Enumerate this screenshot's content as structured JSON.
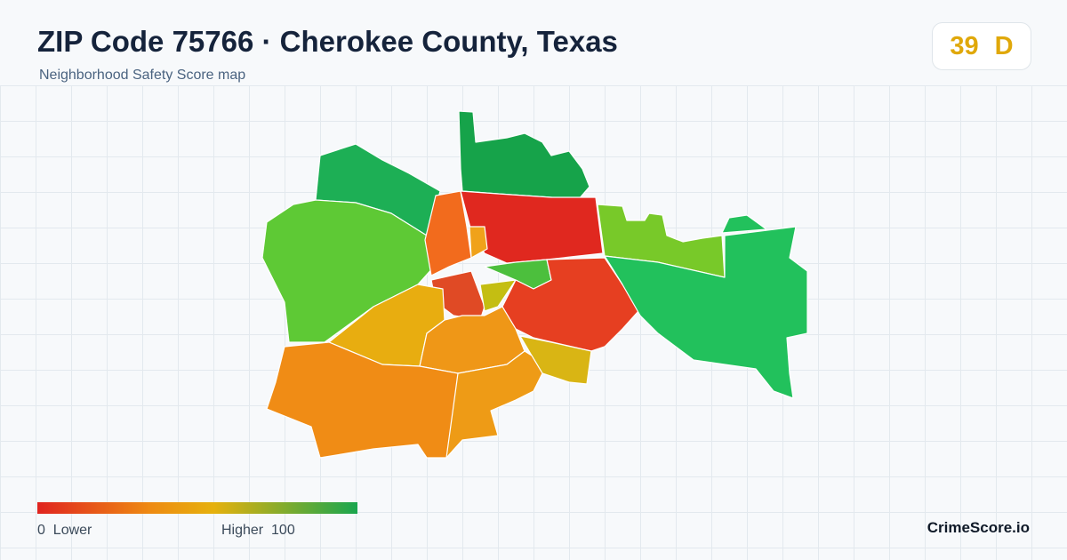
{
  "header": {
    "title": "ZIP Code 75766 · Cherokee County, Texas",
    "subtitle": "Neighborhood Safety Score map"
  },
  "score": {
    "value": 39,
    "grade": "D"
  },
  "legend": {
    "min": 0,
    "min_label": "Lower",
    "max_label": "Higher",
    "max": 100
  },
  "footer": {
    "brand": "CrimeScore.io"
  }
}
